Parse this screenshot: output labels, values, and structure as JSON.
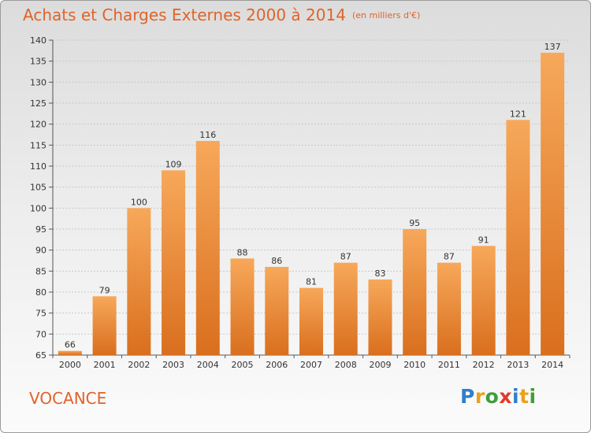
{
  "title": "Achats et Charges Externes 2000 à 2014",
  "subtitle": "(en milliers d'€)",
  "commune": "VOCANCE",
  "logo": {
    "text": "Proxiti",
    "letters": [
      {
        "char": "P",
        "color": "#2f7fc8"
      },
      {
        "char": "r",
        "color": "#e8a21c"
      },
      {
        "char": "o",
        "color": "#3e9e3a"
      },
      {
        "char": "x",
        "color": "#e33b2a"
      },
      {
        "char": "i",
        "color": "#2f7fc8"
      },
      {
        "char": "t",
        "color": "#e8a21c"
      },
      {
        "char": "i",
        "color": "#3e9e3a"
      }
    ]
  },
  "colors": {
    "bar_light": "#f7a85a",
    "bar_dark": "#d96f1e",
    "accent": "#e0632a"
  },
  "chart_data": {
    "type": "bar",
    "title": "Achats et Charges Externes 2000 à 2014",
    "subtitle": "(en milliers d'€)",
    "categories": [
      "2000",
      "2001",
      "2002",
      "2003",
      "2004",
      "2005",
      "2006",
      "2007",
      "2008",
      "2009",
      "2010",
      "2011",
      "2012",
      "2013",
      "2014"
    ],
    "values": [
      66,
      79,
      100,
      109,
      116,
      88,
      86,
      81,
      87,
      83,
      95,
      87,
      91,
      121,
      137
    ],
    "ylim": [
      65,
      140
    ],
    "yticks": [
      65,
      70,
      75,
      80,
      85,
      90,
      95,
      100,
      105,
      110,
      115,
      120,
      125,
      130,
      135,
      140
    ],
    "grid": true,
    "legend": "none"
  }
}
